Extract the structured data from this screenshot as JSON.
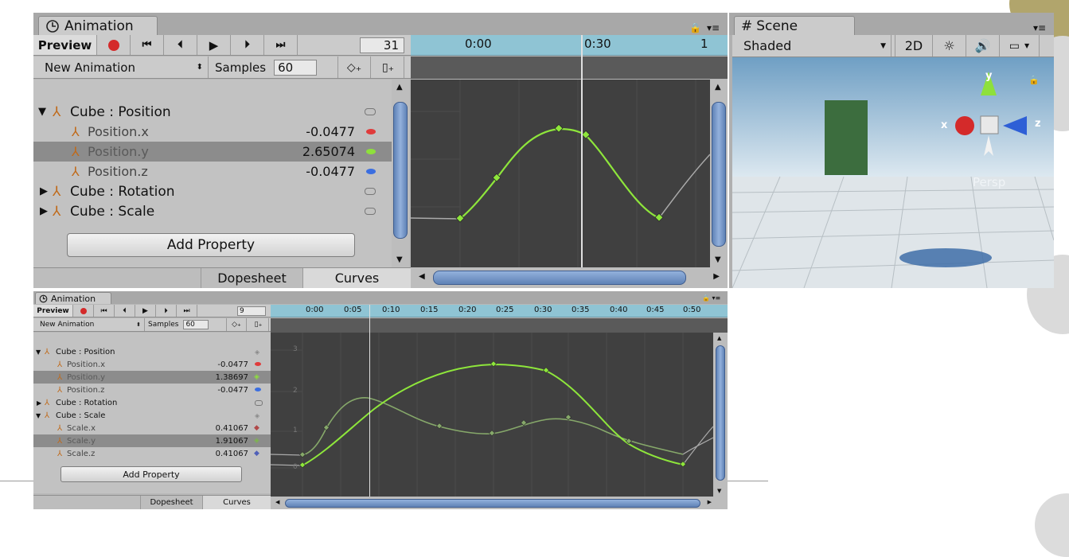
{
  "top_animation": {
    "tab_title": "Animation",
    "preview_label": "Preview",
    "frame_value": "31",
    "clip_name": "New Animation",
    "samples_label": "Samples",
    "samples_value": "60",
    "ruler_ticks": [
      "0:00",
      "0:30",
      "1"
    ],
    "properties": [
      {
        "label": "Cube : Position",
        "value": "",
        "type": "group",
        "expanded": true
      },
      {
        "label": "Position.x",
        "value": "-0.0477",
        "type": "child",
        "dot": "#e03b3b"
      },
      {
        "label": "Position.y",
        "value": "2.65074",
        "type": "child",
        "dot": "#8ee03b",
        "selected": true
      },
      {
        "label": "Position.z",
        "value": "-0.0477",
        "type": "child",
        "dot": "#3b6ee0"
      },
      {
        "label": "Cube : Rotation",
        "value": "",
        "type": "group",
        "expanded": false
      },
      {
        "label": "Cube : Scale",
        "value": "",
        "type": "group",
        "expanded": false
      }
    ],
    "add_property_label": "Add Property",
    "tabs": [
      "Dopesheet",
      "Curves"
    ]
  },
  "scene": {
    "tab_title": "Scene",
    "shading_mode": "Shaded",
    "mode_2d_label": "2D",
    "persp_label": "Persp",
    "axis_labels": {
      "x": "x",
      "y": "y",
      "z": "z"
    }
  },
  "bottom_animation": {
    "tab_title": "Animation",
    "preview_label": "Preview",
    "frame_value": "9",
    "clip_name": "New Animation",
    "samples_label": "Samples",
    "samples_value": "60",
    "ruler_ticks": [
      "0:00",
      "0:05",
      "0:10",
      "0:15",
      "0:20",
      "0:25",
      "0:30",
      "0:35",
      "0:40",
      "0:45",
      "0:50"
    ],
    "y_ticks": [
      "3",
      "2",
      "1",
      "0"
    ],
    "properties": [
      {
        "label": "Cube : Position",
        "value": "",
        "type": "group",
        "expanded": true
      },
      {
        "label": "Position.x",
        "value": "-0.0477",
        "type": "child",
        "dot": "#e03b3b"
      },
      {
        "label": "Position.y",
        "value": "1.38697",
        "type": "child",
        "dot": "#8ee03b",
        "selected": true
      },
      {
        "label": "Position.z",
        "value": "-0.0477",
        "type": "child",
        "dot": "#3b6ee0"
      },
      {
        "label": "Cube : Rotation",
        "value": "",
        "type": "group",
        "expanded": false
      },
      {
        "label": "Cube : Scale",
        "value": "",
        "type": "group",
        "expanded": true
      },
      {
        "label": "Scale.x",
        "value": "0.41067",
        "type": "child",
        "dot": "#b04848"
      },
      {
        "label": "Scale.y",
        "value": "1.91067",
        "type": "child",
        "dot": "#7cb84a",
        "selected": true
      },
      {
        "label": "Scale.z",
        "value": "0.41067",
        "type": "child",
        "dot": "#5060b8"
      }
    ],
    "add_property_label": "Add Property",
    "tabs": [
      "Dopesheet",
      "Curves"
    ]
  },
  "colors": {
    "curve_position_y": "#8ee63b",
    "curve_scale_y": "#86a86a",
    "ruler": "#8fc4d4",
    "curve_bg": "#404040",
    "record_red": "#d42a2a"
  }
}
